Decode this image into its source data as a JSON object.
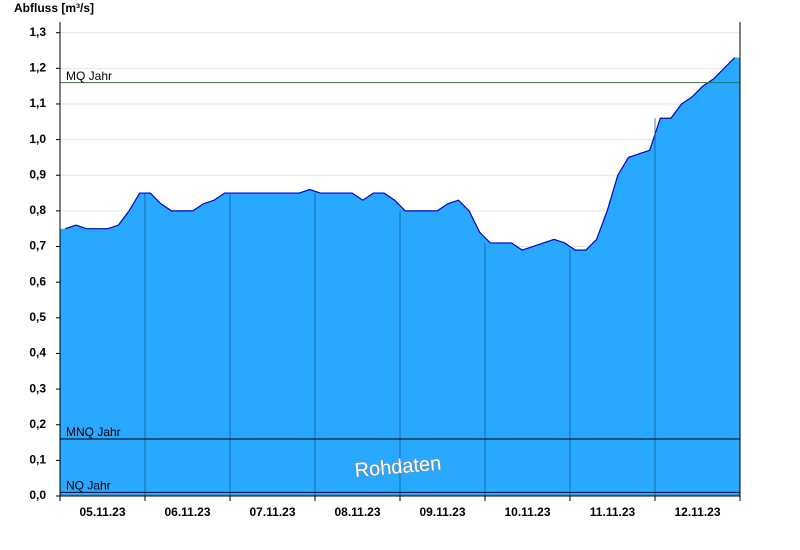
{
  "chart_data": {
    "type": "area",
    "y_label": "Abfluss [m³/s]",
    "categories": [
      null,
      null,
      null,
      null,
      "05.11.23",
      null,
      null,
      null,
      null,
      null,
      null,
      null,
      "06.11.23",
      null,
      null,
      null,
      null,
      null,
      null,
      null,
      "07.11.23",
      null,
      null,
      null,
      null,
      null,
      null,
      null,
      "08.11.23",
      null,
      null,
      null,
      null,
      null,
      null,
      null,
      "09.11.23",
      null,
      null,
      null,
      null,
      null,
      null,
      null,
      "10.11.23",
      null,
      null,
      null,
      null,
      null,
      null,
      null,
      "11.11.23",
      null,
      null,
      null,
      null,
      null,
      null,
      null,
      "12.11.23",
      null,
      null,
      null
    ],
    "series": [
      {
        "color": "#29a8ff",
        "line_color": "#0000cc",
        "values": [
          0.75,
          0.76,
          0.75,
          0.75,
          0.75,
          0.76,
          0.8,
          0.85,
          0.85,
          0.82,
          0.8,
          0.8,
          0.8,
          0.82,
          0.83,
          0.85,
          0.85,
          0.85,
          0.85,
          0.85,
          0.85,
          0.85,
          0.85,
          0.86,
          0.85,
          0.85,
          0.85,
          0.85,
          0.83,
          0.85,
          0.85,
          0.83,
          0.8,
          0.8,
          0.8,
          0.8,
          0.82,
          0.83,
          0.8,
          0.74,
          0.71,
          0.71,
          0.71,
          0.69,
          0.7,
          0.71,
          0.72,
          0.71,
          0.69,
          0.69,
          0.72,
          0.8,
          0.9,
          0.95,
          0.96,
          0.97,
          1.06,
          1.06,
          1.1,
          1.12,
          1.15,
          1.17,
          1.2,
          1.23
        ]
      }
    ],
    "ylim": [
      0,
      1.33
    ],
    "yticks": [
      {
        "value": 0,
        "label": "0,0"
      },
      {
        "value": 0.1,
        "label": "0,1"
      },
      {
        "value": 0.2,
        "label": "0,2"
      },
      {
        "value": 0.3,
        "label": "0,3"
      },
      {
        "value": 0.4,
        "label": "0,4"
      },
      {
        "value": 0.5,
        "label": "0,5"
      },
      {
        "value": 0.6,
        "label": "0,6"
      },
      {
        "value": 0.7,
        "label": "0,7"
      },
      {
        "value": 0.8,
        "label": "0,8"
      },
      {
        "value": 0.9,
        "label": "0,9"
      },
      {
        "value": 1.0,
        "label": "1,0"
      },
      {
        "value": 1.1,
        "label": "1,1"
      },
      {
        "value": 1.2,
        "label": "1,2"
      },
      {
        "value": 1.3,
        "label": "1,3"
      }
    ],
    "grid": true,
    "reference_lines": [
      {
        "label": "MQ Jahr",
        "value": 1.16,
        "color": "#2e7d32"
      },
      {
        "label": "MNQ Jahr",
        "value": 0.16,
        "color": "#000000"
      },
      {
        "label": "NQ Jahr",
        "value": 0.01,
        "color": "#000000"
      }
    ],
    "annotation": "Rohdaten"
  }
}
